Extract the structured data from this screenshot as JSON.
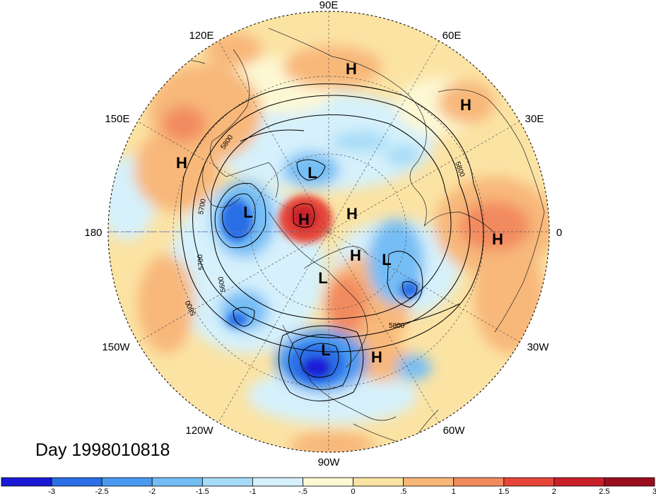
{
  "title": "Day 1998010818",
  "longitude_labels": {
    "lon_90E": "90E",
    "lon_60E": "60E",
    "lon_30E": "30E",
    "lon_0": "0",
    "lon_30W": "30W",
    "lon_60W": "60W",
    "lon_90W": "90W",
    "lon_120W": "120W",
    "lon_150W": "150W",
    "lon_180": "180",
    "lon_150E": "150E",
    "lon_120E": "120E"
  },
  "pressure_centers": {
    "h1": "H",
    "h2": "H",
    "h3": "H",
    "h4": "H",
    "h5": "H",
    "h6": "H",
    "h7": "H",
    "h8": "H",
    "l1": "L",
    "l2": "L",
    "l3": "L",
    "l4": "L",
    "l5": "L"
  },
  "contour_labels": {
    "c1": "5800",
    "c2": "5700",
    "c3": "5700",
    "c4": "5600",
    "c5": "5800",
    "c6": "5800",
    "c7": "5800"
  },
  "colorbar": {
    "ticks": [
      "-3",
      "-2.5",
      "-2",
      "-1.5",
      "-1",
      "-.5",
      "0",
      ".5",
      "1",
      "1.5",
      "2",
      "2.5",
      "3"
    ],
    "colors": [
      "#1a1ad6",
      "#2b6ee6",
      "#4a9af0",
      "#74bdf5",
      "#a6dcf7",
      "#d6f1fb",
      "#fdf8d4",
      "#fbe3a4",
      "#f8b87a",
      "#f28a5e",
      "#e6463a",
      "#c9202a",
      "#9b0e1e"
    ]
  }
}
